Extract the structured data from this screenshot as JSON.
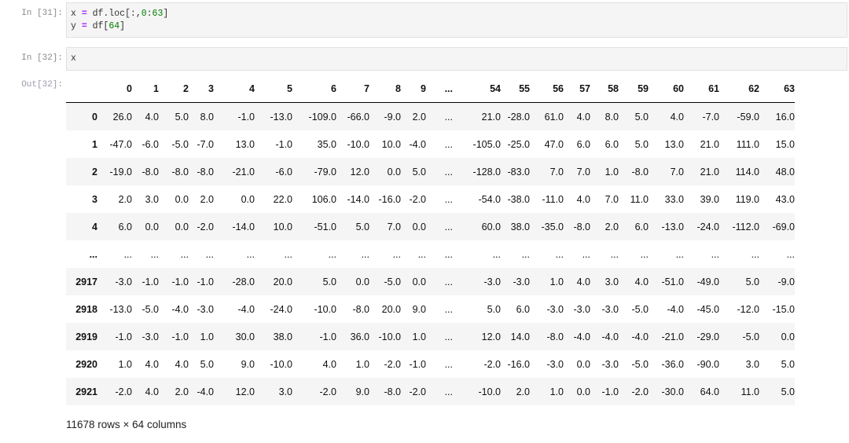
{
  "cells": [
    {
      "prompt": "In [31]:",
      "lines": [
        [
          {
            "t": "x ",
            "c": ""
          },
          {
            "t": "=",
            "c": "kw-eq"
          },
          {
            "t": " df.loc[:,",
            "c": ""
          },
          {
            "t": "0",
            "c": "num"
          },
          {
            "t": ":",
            "c": ""
          },
          {
            "t": "63",
            "c": "num"
          },
          {
            "t": "]",
            "c": ""
          }
        ],
        [
          {
            "t": "y ",
            "c": ""
          },
          {
            "t": "=",
            "c": "kw-eq"
          },
          {
            "t": " df[",
            "c": ""
          },
          {
            "t": "64",
            "c": "num"
          },
          {
            "t": "]",
            "c": ""
          }
        ]
      ]
    },
    {
      "prompt": "In [32]:",
      "lines": [
        [
          {
            "t": "x",
            "c": ""
          }
        ]
      ]
    }
  ],
  "output_prompt": "Out[32]:",
  "dataframe": {
    "columns": [
      "0",
      "1",
      "2",
      "3",
      "4",
      "5",
      "6",
      "7",
      "8",
      "9",
      "...",
      "54",
      "55",
      "56",
      "57",
      "58",
      "59",
      "60",
      "61",
      "62",
      "63"
    ],
    "rows": [
      {
        "index": "0",
        "values": [
          "26.0",
          "4.0",
          "5.0",
          "8.0",
          "-1.0",
          "-13.0",
          "-109.0",
          "-66.0",
          "-9.0",
          "2.0",
          "...",
          "21.0",
          "-28.0",
          "61.0",
          "4.0",
          "8.0",
          "5.0",
          "4.0",
          "-7.0",
          "-59.0",
          "16.0"
        ]
      },
      {
        "index": "1",
        "values": [
          "-47.0",
          "-6.0",
          "-5.0",
          "-7.0",
          "13.0",
          "-1.0",
          "35.0",
          "-10.0",
          "10.0",
          "-4.0",
          "...",
          "-105.0",
          "-25.0",
          "47.0",
          "6.0",
          "6.0",
          "5.0",
          "13.0",
          "21.0",
          "111.0",
          "15.0"
        ]
      },
      {
        "index": "2",
        "values": [
          "-19.0",
          "-8.0",
          "-8.0",
          "-8.0",
          "-21.0",
          "-6.0",
          "-79.0",
          "12.0",
          "0.0",
          "5.0",
          "...",
          "-128.0",
          "-83.0",
          "7.0",
          "7.0",
          "1.0",
          "-8.0",
          "7.0",
          "21.0",
          "114.0",
          "48.0"
        ]
      },
      {
        "index": "3",
        "values": [
          "2.0",
          "3.0",
          "0.0",
          "2.0",
          "0.0",
          "22.0",
          "106.0",
          "-14.0",
          "-16.0",
          "-2.0",
          "...",
          "-54.0",
          "-38.0",
          "-11.0",
          "4.0",
          "7.0",
          "11.0",
          "33.0",
          "39.0",
          "119.0",
          "43.0"
        ]
      },
      {
        "index": "4",
        "values": [
          "6.0",
          "0.0",
          "0.0",
          "-2.0",
          "-14.0",
          "10.0",
          "-51.0",
          "5.0",
          "7.0",
          "0.0",
          "...",
          "60.0",
          "38.0",
          "-35.0",
          "-8.0",
          "2.0",
          "6.0",
          "-13.0",
          "-24.0",
          "-112.0",
          "-69.0"
        ]
      },
      {
        "index": "...",
        "values": [
          "...",
          "...",
          "...",
          "...",
          "...",
          "...",
          "...",
          "...",
          "...",
          "...",
          "...",
          "...",
          "...",
          "...",
          "...",
          "...",
          "...",
          "...",
          "...",
          "...",
          "..."
        ]
      },
      {
        "index": "2917",
        "values": [
          "-3.0",
          "-1.0",
          "-1.0",
          "-1.0",
          "-28.0",
          "20.0",
          "5.0",
          "0.0",
          "-5.0",
          "0.0",
          "...",
          "-3.0",
          "-3.0",
          "1.0",
          "4.0",
          "3.0",
          "4.0",
          "-51.0",
          "-49.0",
          "5.0",
          "-9.0"
        ]
      },
      {
        "index": "2918",
        "values": [
          "-13.0",
          "-5.0",
          "-4.0",
          "-3.0",
          "-4.0",
          "-24.0",
          "-10.0",
          "-8.0",
          "20.0",
          "9.0",
          "...",
          "5.0",
          "6.0",
          "-3.0",
          "-3.0",
          "-3.0",
          "-5.0",
          "-4.0",
          "-45.0",
          "-12.0",
          "-15.0"
        ]
      },
      {
        "index": "2919",
        "values": [
          "-1.0",
          "-3.0",
          "-1.0",
          "1.0",
          "30.0",
          "38.0",
          "-1.0",
          "36.0",
          "-10.0",
          "1.0",
          "...",
          "12.0",
          "14.0",
          "-8.0",
          "-4.0",
          "-4.0",
          "-4.0",
          "-21.0",
          "-29.0",
          "-5.0",
          "0.0"
        ]
      },
      {
        "index": "2920",
        "values": [
          "1.0",
          "4.0",
          "4.0",
          "5.0",
          "9.0",
          "-10.0",
          "4.0",
          "1.0",
          "-2.0",
          "-1.0",
          "...",
          "-2.0",
          "-16.0",
          "-3.0",
          "0.0",
          "-3.0",
          "-5.0",
          "-36.0",
          "-90.0",
          "3.0",
          "5.0"
        ]
      },
      {
        "index": "2921",
        "values": [
          "-2.0",
          "4.0",
          "2.0",
          "-4.0",
          "12.0",
          "3.0",
          "-2.0",
          "9.0",
          "-8.0",
          "-2.0",
          "...",
          "-10.0",
          "2.0",
          "1.0",
          "0.0",
          "-1.0",
          "-2.0",
          "-30.0",
          "64.0",
          "11.0",
          "5.0"
        ]
      }
    ]
  },
  "footer": "11678 rows × 64 columns"
}
